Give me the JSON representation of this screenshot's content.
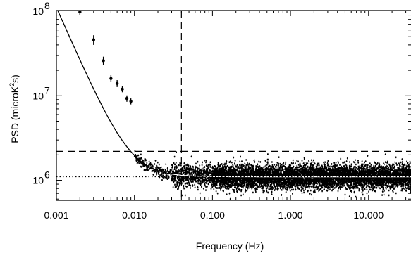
{
  "chart_data": {
    "type": "scatter",
    "xlabel": "Frequency (Hz)",
    "ylabel": "PSD (microK²s)",
    "x_scale": "log",
    "y_scale": "log",
    "xlim": [
      0.001,
      35
    ],
    "ylim": [
      580000,
      1000000
    ],
    "ylim_note": "",
    "x_ticks": [
      {
        "value": 0.001,
        "label": "0.001"
      },
      {
        "value": 0.01,
        "label": "0.010"
      },
      {
        "value": 0.1,
        "label": "0.100"
      },
      {
        "value": 1,
        "label": "1.000"
      },
      {
        "value": 10,
        "label": "10.000"
      }
    ],
    "y_ticks": [
      {
        "value": 1000000,
        "label": "10",
        "exp": "6"
      },
      {
        "value": 10000000,
        "label": "10",
        "exp": "7"
      },
      {
        "value": 100000000,
        "label": "10",
        "exp": "8"
      }
    ],
    "series": [
      {
        "kind": "binned-points",
        "points": [
          {
            "x": 0.002,
            "y": 98000000,
            "err": 8000000
          },
          {
            "x": 0.003,
            "y": 46000000,
            "err": 6000000
          },
          {
            "x": 0.004,
            "y": 26000000,
            "err": 3000000
          },
          {
            "x": 0.005,
            "y": 16000000,
            "err": 1500000
          },
          {
            "x": 0.006,
            "y": 14000000,
            "err": 1300000
          },
          {
            "x": 0.007,
            "y": 12000000,
            "err": 1000000
          },
          {
            "x": 0.008,
            "y": 9300000,
            "err": 800000
          },
          {
            "x": 0.009,
            "y": 8600000,
            "err": 700000
          }
        ]
      },
      {
        "kind": "fit-curve",
        "model": "white + power-law",
        "white_level": 1100000,
        "amplitude_at_0_001": 110000000,
        "slope": -2.1
      },
      {
        "kind": "dense-psd",
        "white_level": 1100000,
        "x_range": [
          0.01,
          35
        ]
      }
    ],
    "reference_lines": [
      {
        "orientation": "vertical",
        "x": 0.04,
        "style": "dashed"
      },
      {
        "orientation": "horizontal",
        "y": 2200000,
        "style": "dashed"
      },
      {
        "orientation": "horizontal",
        "y": 1100000,
        "style": "dotted"
      }
    ],
    "grid": false,
    "legend": "none"
  }
}
